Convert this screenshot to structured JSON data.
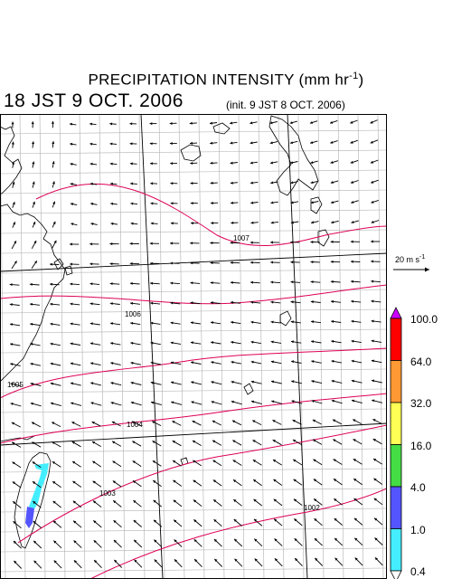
{
  "title": {
    "main": "PRECIPITATION INTENSITY (mm hr",
    "unit_sup": "-1",
    "close": ")"
  },
  "valid_time": "18 JST 9 OCT. 2006",
  "init_time": "(init. 9 JST 8 OCT. 2006)",
  "reference_vector": {
    "label": "20 m s",
    "unit_sup": "-1",
    "speed_ms": 20
  },
  "colorbar": {
    "labels": [
      "100.0",
      "64.0",
      "32.0",
      "16.0",
      "4.0",
      "1.0",
      "0.4"
    ],
    "colors": [
      "#cc00ff",
      "#ff0000",
      "#ff9933",
      "#ffff55",
      "#44dd44",
      "#5555ff",
      "#44eeff",
      "#ffffff"
    ]
  },
  "isobar_labels": [
    "1007",
    "1006",
    "1005",
    "1004",
    "1003",
    "1002"
  ],
  "colors": {
    "isobar": "#dd0055",
    "coastline": "#000000",
    "grid": "#b0b0b0",
    "vectors": "#000000"
  }
}
